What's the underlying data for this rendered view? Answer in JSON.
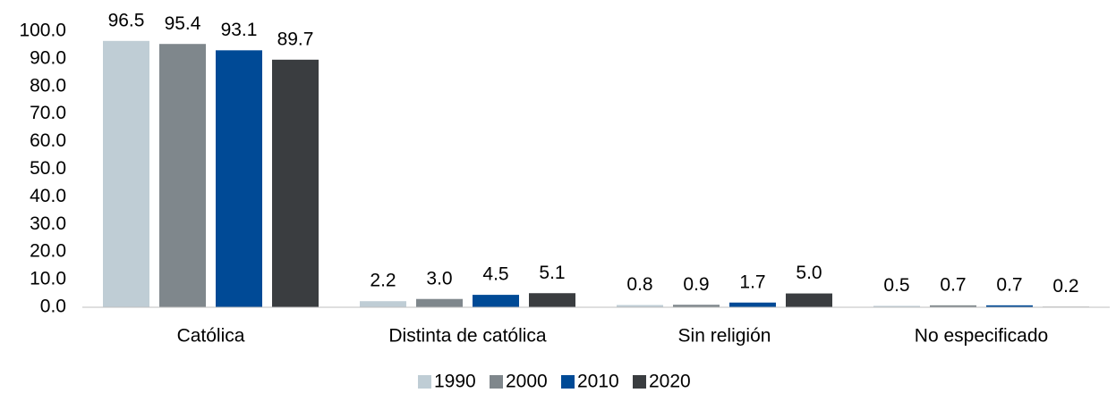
{
  "chart_data": {
    "type": "bar",
    "categories": [
      "Católica",
      "Distinta de católica",
      "Sin religión",
      "No especificado"
    ],
    "series": [
      {
        "name": "1990",
        "color": "#bfcdd5",
        "values": [
          96.5,
          2.2,
          0.8,
          0.5
        ],
        "value_labels": [
          "96.5",
          "2.2",
          "0.8",
          "0.5"
        ]
      },
      {
        "name": "2000",
        "color": "#7f878c",
        "values": [
          95.4,
          3.0,
          0.9,
          0.7
        ],
        "value_labels": [
          "95.4",
          "3.0",
          "0.9",
          "0.7"
        ]
      },
      {
        "name": "2010",
        "color": "#004a96",
        "values": [
          93.1,
          4.5,
          1.7,
          0.7
        ],
        "value_labels": [
          "93.1",
          "4.5",
          "1.7",
          "0.7"
        ]
      },
      {
        "name": "2020",
        "color": "#3a3d40",
        "values": [
          89.7,
          5.1,
          5.0,
          0.2
        ],
        "value_labels": [
          "89.7",
          "5.1",
          "5.0",
          "0.2"
        ]
      }
    ],
    "ylim": [
      0,
      100
    ],
    "yticks": [
      {
        "value": 0,
        "label": "0.0"
      },
      {
        "value": 10,
        "label": "10.0"
      },
      {
        "value": 20,
        "label": "20.0"
      },
      {
        "value": 30,
        "label": "30.0"
      },
      {
        "value": 40,
        "label": "40.0"
      },
      {
        "value": 50,
        "label": "50.0"
      },
      {
        "value": 60,
        "label": "60.0"
      },
      {
        "value": 70,
        "label": "70.0"
      },
      {
        "value": 80,
        "label": "80.0"
      },
      {
        "value": 90,
        "label": "90.0"
      },
      {
        "value": 100,
        "label": "100.0"
      }
    ],
    "grid": false,
    "legend": "bottom"
  }
}
